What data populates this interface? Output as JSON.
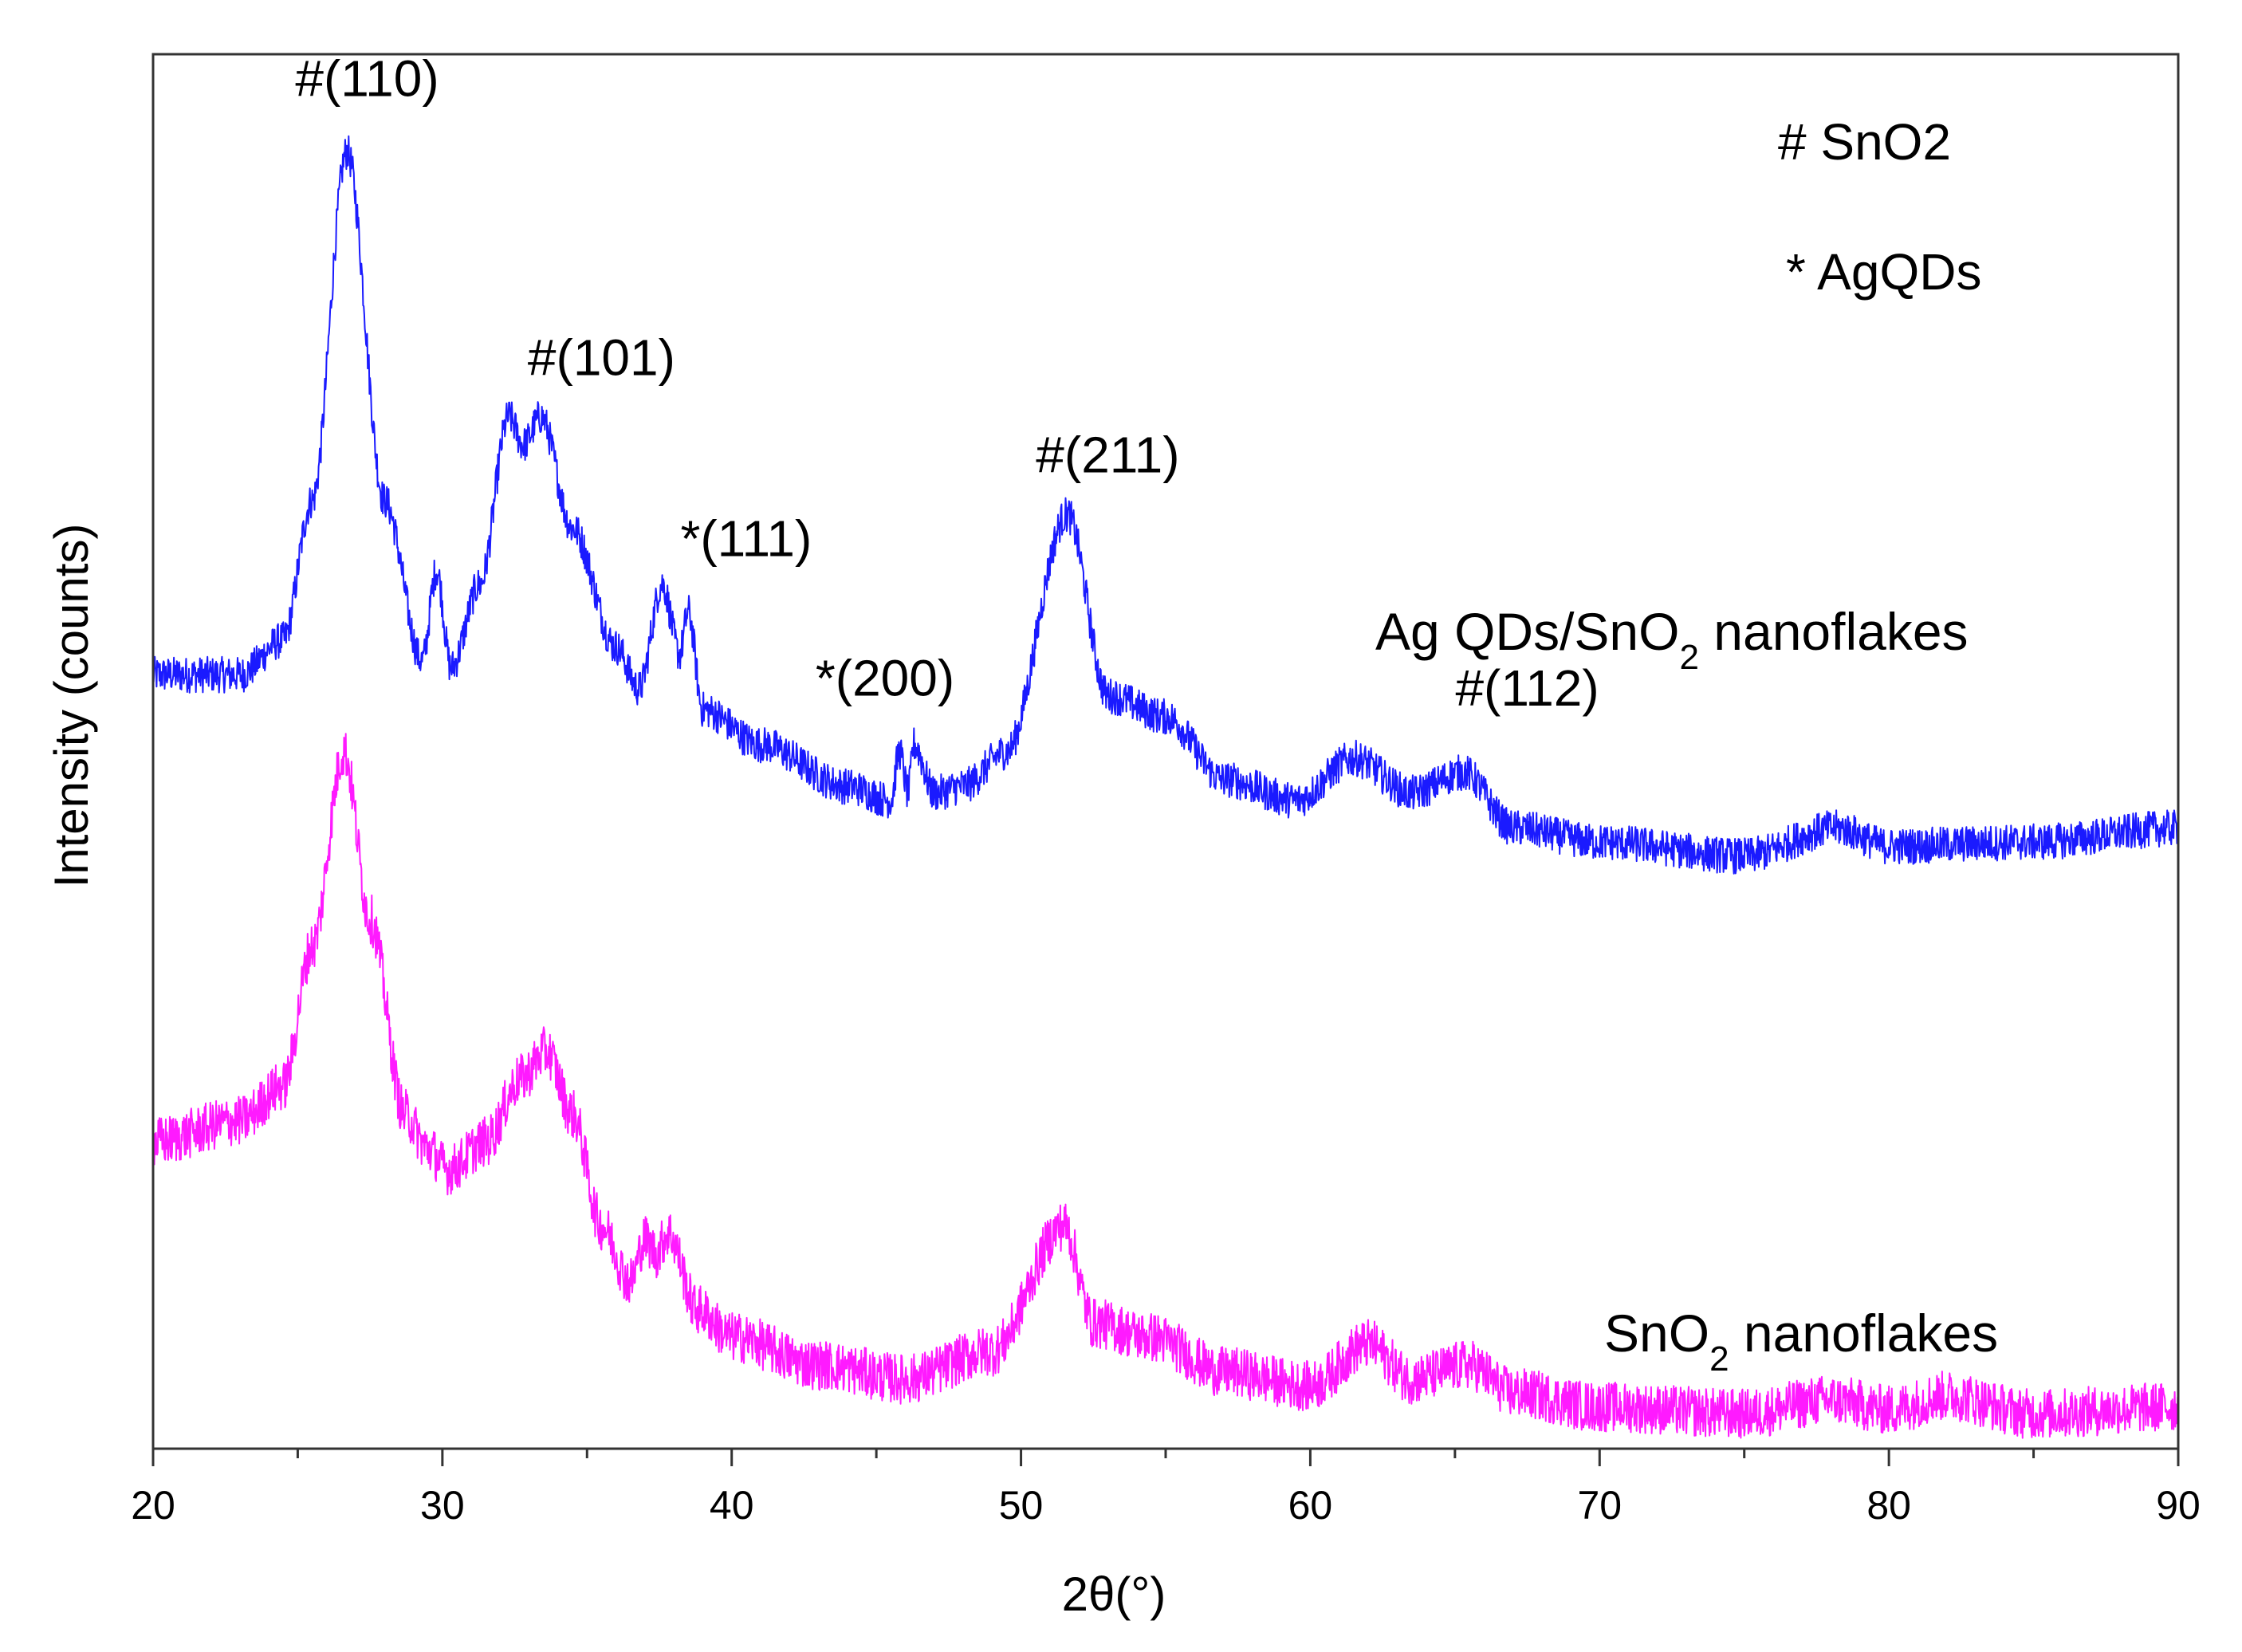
{
  "chart_data": {
    "type": "line",
    "title": "",
    "xlabel": "2θ(°)",
    "ylabel": "Intensity (counts)",
    "xlim": [
      20,
      90
    ],
    "ylim": [
      0,
      1
    ],
    "xticks": [
      20,
      30,
      40,
      50,
      60,
      70,
      80,
      90
    ],
    "yticks": [],
    "grid": false,
    "legend_notes": [
      "# SnO2",
      "* AgQDs"
    ],
    "series": [
      {
        "name": "Ag QDs/SnO2 nanoflakes",
        "label_main": "Ag QDs/SnO",
        "label_sub": "2",
        "label_tail": " nanoflakes",
        "color": "#1a1aff",
        "baseline": [
          [
            20,
            0.555
          ],
          [
            23,
            0.555
          ],
          [
            24.5,
            0.58
          ],
          [
            25.5,
            0.68
          ],
          [
            26.7,
            0.93
          ],
          [
            28,
            0.68
          ],
          [
            29.3,
            0.565
          ],
          [
            29.8,
            0.63
          ],
          [
            30.3,
            0.56
          ],
          [
            31.3,
            0.62
          ],
          [
            32.3,
            0.74
          ],
          [
            32.8,
            0.72
          ],
          [
            33.4,
            0.74
          ],
          [
            34.5,
            0.66
          ],
          [
            36,
            0.575
          ],
          [
            36.8,
            0.545
          ],
          [
            37.6,
            0.62
          ],
          [
            38.2,
            0.57
          ],
          [
            38.5,
            0.6
          ],
          [
            39,
            0.53
          ],
          [
            41,
            0.505
          ],
          [
            44,
            0.475
          ],
          [
            45.5,
            0.465
          ],
          [
            45.8,
            0.5
          ],
          [
            46.1,
            0.47
          ],
          [
            46.3,
            0.505
          ],
          [
            47,
            0.47
          ],
          [
            48,
            0.475
          ],
          [
            49.5,
            0.5
          ],
          [
            51.6,
            0.67
          ],
          [
            53,
            0.54
          ],
          [
            55,
            0.525
          ],
          [
            57,
            0.48
          ],
          [
            59.5,
            0.465
          ],
          [
            61.5,
            0.495
          ],
          [
            63.5,
            0.47
          ],
          [
            65.3,
            0.485
          ],
          [
            67,
            0.445
          ],
          [
            70,
            0.435
          ],
          [
            75,
            0.425
          ],
          [
            78.2,
            0.445
          ],
          [
            80,
            0.432
          ],
          [
            85,
            0.435
          ],
          [
            90,
            0.445
          ]
        ],
        "noise_amplitude": 0.013,
        "annotations": [
          {
            "text": "#(110)",
            "x": 27.4,
            "y": 0.97
          },
          {
            "text": "#(101)",
            "x": 35.5,
            "y": 0.77
          },
          {
            "text": "*(111)",
            "x": 40.5,
            "y": 0.64
          },
          {
            "text": "*(200)",
            "x": 45.3,
            "y": 0.54
          },
          {
            "text": "#(211)",
            "x": 53.0,
            "y": 0.7
          },
          {
            "text": "#(112)",
            "x": 67.5,
            "y": 0.533
          }
        ]
      },
      {
        "name": "SnO2 nanoflakes",
        "label_main": "SnO",
        "label_sub": "2",
        "label_tail": " nanoflakes",
        "color": "#ff1aff",
        "baseline": [
          [
            20,
            0.22
          ],
          [
            23,
            0.235
          ],
          [
            24.5,
            0.26
          ],
          [
            25.5,
            0.36
          ],
          [
            26.6,
            0.5
          ],
          [
            27.5,
            0.38
          ],
          [
            28.7,
            0.24
          ],
          [
            29.5,
            0.215
          ],
          [
            30.2,
            0.2
          ],
          [
            31.5,
            0.22
          ],
          [
            32.7,
            0.265
          ],
          [
            33.6,
            0.285
          ],
          [
            34.5,
            0.24
          ],
          [
            35.5,
            0.16
          ],
          [
            36.5,
            0.12
          ],
          [
            37,
            0.15
          ],
          [
            37.4,
            0.14
          ],
          [
            37.8,
            0.155
          ],
          [
            38.8,
            0.1
          ],
          [
            40,
            0.08
          ],
          [
            43,
            0.06
          ],
          [
            46,
            0.05
          ],
          [
            49,
            0.07
          ],
          [
            51.5,
            0.16
          ],
          [
            52.5,
            0.09
          ],
          [
            54.5,
            0.08
          ],
          [
            57,
            0.055
          ],
          [
            60,
            0.045
          ],
          [
            62,
            0.075
          ],
          [
            63.5,
            0.05
          ],
          [
            65.5,
            0.06
          ],
          [
            67,
            0.04
          ],
          [
            70,
            0.03
          ],
          [
            75,
            0.025
          ],
          [
            78,
            0.035
          ],
          [
            80,
            0.028
          ],
          [
            82,
            0.038
          ],
          [
            85,
            0.025
          ],
          [
            90,
            0.03
          ]
        ],
        "noise_amplitude": 0.018,
        "annotations": []
      }
    ]
  }
}
